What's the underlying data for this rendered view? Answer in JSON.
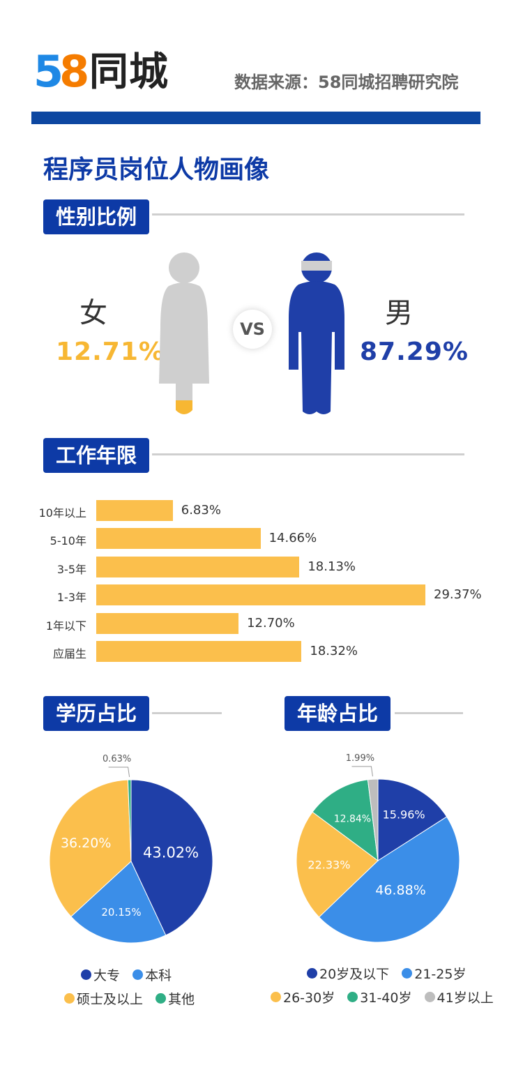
{
  "header": {
    "logo_digits_5": "5",
    "logo_digits_8": "8",
    "logo_text": "同城",
    "source": "数据来源：58同城招聘研究院",
    "brand_color": "#0d47a1"
  },
  "title": "程序员岗位人物画像",
  "gender": {
    "section": "性别比例",
    "female_label": "女",
    "female_pct": "12.71%",
    "male_label": "男",
    "male_pct": "87.29%",
    "vs": "VS",
    "female_value": 12.71,
    "male_value": 87.29,
    "colors": {
      "female": "#f7b733",
      "male": "#1f3fa8",
      "neutral": "#cfcfcf"
    }
  },
  "experience": {
    "section": "工作年限"
  },
  "education": {
    "section": "学历占比"
  },
  "age": {
    "section": "年龄占比"
  },
  "chart_data": [
    {
      "type": "bar",
      "orientation": "horizontal",
      "categories": [
        "10年以上",
        "5-10年",
        "3-5年",
        "1-3年",
        "1年以下",
        "应届生"
      ],
      "values": [
        6.83,
        14.66,
        18.13,
        29.37,
        12.7,
        18.32
      ],
      "value_labels": [
        "6.83%",
        "14.66%",
        "18.13%",
        "29.37%",
        "12.70%",
        "18.32%"
      ],
      "color": "#fbbf4c"
    },
    {
      "type": "pie",
      "labels": [
        "大专",
        "本科",
        "硕士及以上",
        "其他"
      ],
      "values": [
        43.02,
        20.15,
        36.2,
        0.63
      ],
      "value_labels": [
        "43.02%",
        "20.15%",
        "36.20%",
        "0.63%"
      ],
      "colors": [
        "#1f3fa8",
        "#3b8ee8",
        "#fbbf4c",
        "#2fae85"
      ],
      "legend_position": "bottom"
    },
    {
      "type": "pie",
      "labels": [
        "20岁及以下",
        "21-25岁",
        "26-30岁",
        "31-40岁",
        "41岁以上"
      ],
      "values": [
        15.96,
        46.88,
        22.33,
        12.84,
        1.99
      ],
      "value_labels": [
        "15.96%",
        "46.88%",
        "22.33%",
        "12.84%",
        "1.99%"
      ],
      "colors": [
        "#1f3fa8",
        "#3b8ee8",
        "#fbbf4c",
        "#2fae85",
        "#bdbdbd"
      ],
      "legend_position": "bottom"
    }
  ]
}
